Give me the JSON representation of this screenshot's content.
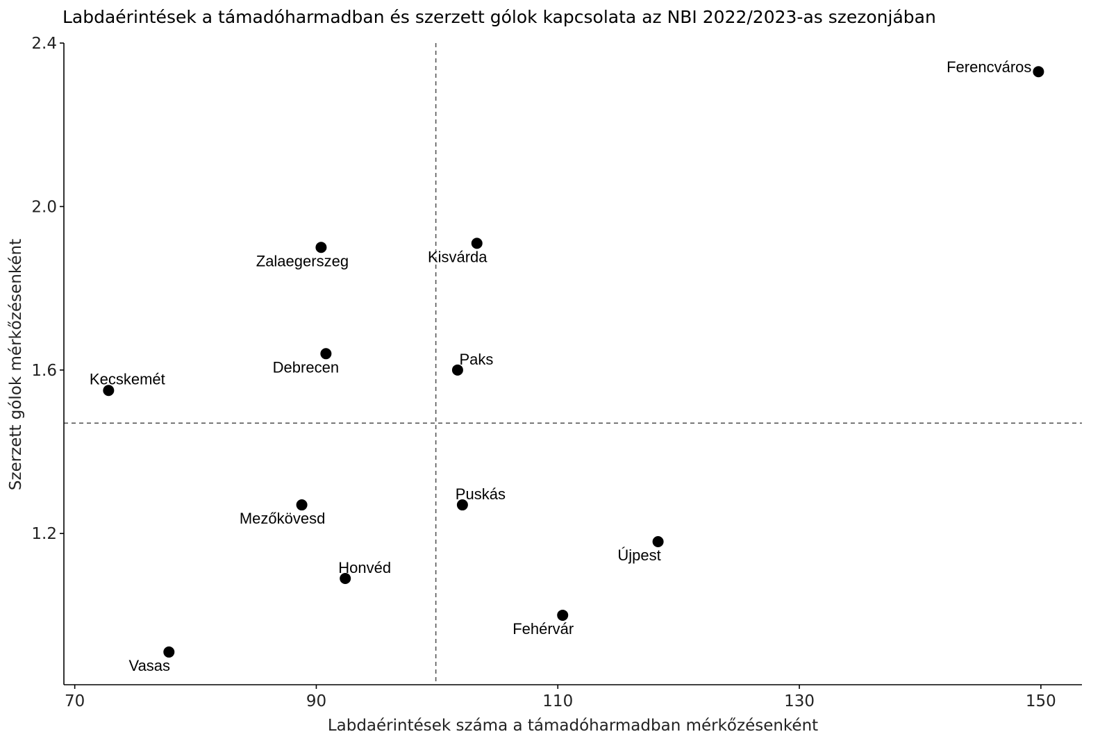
{
  "chart_data": {
    "type": "scatter",
    "title": "Labdaérintések a támadóharmadban és szerzett gólok kapcsolata az NBI 2022/2023-as szezonjában",
    "xlabel": "Labdaérintések száma a támadóharmadban mérkőzésenként",
    "ylabel": "Szerzett gólok mérkőzésenként",
    "xlim": [
      69.1,
      153.4
    ],
    "ylim": [
      0.83,
      2.4
    ],
    "xticks": [
      70,
      90,
      110,
      130,
      150
    ],
    "xtick_labels": [
      "70",
      "90",
      "110",
      "130",
      "150"
    ],
    "yticks": [
      1.2,
      1.6,
      2.0,
      2.4
    ],
    "ytick_labels": [
      "1.2",
      "1.6",
      "2.0",
      "2.4"
    ],
    "reference_lines": {
      "x": 99.9,
      "y": 1.47
    },
    "grid": false,
    "points": [
      {
        "team": "Ferencváros",
        "x": 149.8,
        "y": 2.33
      },
      {
        "team": "Kisvárda",
        "x": 103.3,
        "y": 1.91
      },
      {
        "team": "Zalaegerszeg",
        "x": 90.4,
        "y": 1.9
      },
      {
        "team": "Debrecen",
        "x": 90.8,
        "y": 1.64
      },
      {
        "team": "Paks",
        "x": 101.7,
        "y": 1.6
      },
      {
        "team": "Kecskemét",
        "x": 72.8,
        "y": 1.55
      },
      {
        "team": "Mezőkövesd",
        "x": 88.8,
        "y": 1.27
      },
      {
        "team": "Puskás",
        "x": 102.1,
        "y": 1.27
      },
      {
        "team": "Újpest",
        "x": 118.3,
        "y": 1.18
      },
      {
        "team": "Honvéd",
        "x": 92.4,
        "y": 1.09
      },
      {
        "team": "Fehérvár",
        "x": 110.4,
        "y": 1.0
      },
      {
        "team": "Vasas",
        "x": 77.8,
        "y": 0.91
      }
    ]
  },
  "colors": {
    "point": "#000000",
    "reference_line": "#555555",
    "axis": "#000000"
  }
}
